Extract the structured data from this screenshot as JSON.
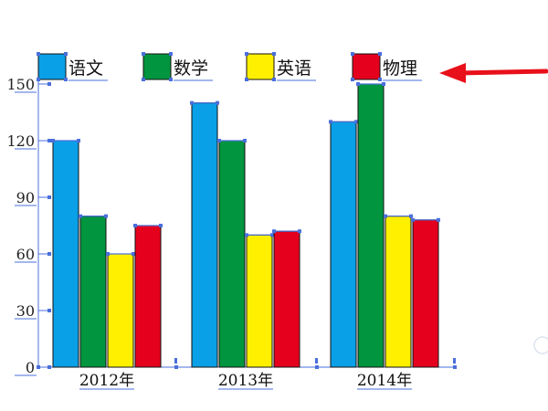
{
  "chart_data": {
    "type": "bar",
    "categories": [
      "2012年",
      "2013年",
      "2014年"
    ],
    "series": [
      {
        "name": "语文",
        "color": "#0aa0e8",
        "values": [
          120,
          140,
          130
        ]
      },
      {
        "name": "数学",
        "color": "#00953e",
        "values": [
          80,
          120,
          150
        ]
      },
      {
        "name": "英语",
        "color": "#fff000",
        "values": [
          60,
          70,
          80
        ]
      },
      {
        "name": "物理",
        "color": "#e5001e",
        "values": [
          75,
          72,
          78
        ]
      }
    ],
    "title": "",
    "xlabel": "",
    "ylabel": "",
    "ylim": [
      0,
      150
    ],
    "yticks": [
      "0",
      "30",
      "60",
      "90",
      "120",
      "150"
    ],
    "grid": false,
    "legend": "top",
    "selection_color": "#4a6fdc",
    "annotation_arrow_color": "#e8101a"
  }
}
